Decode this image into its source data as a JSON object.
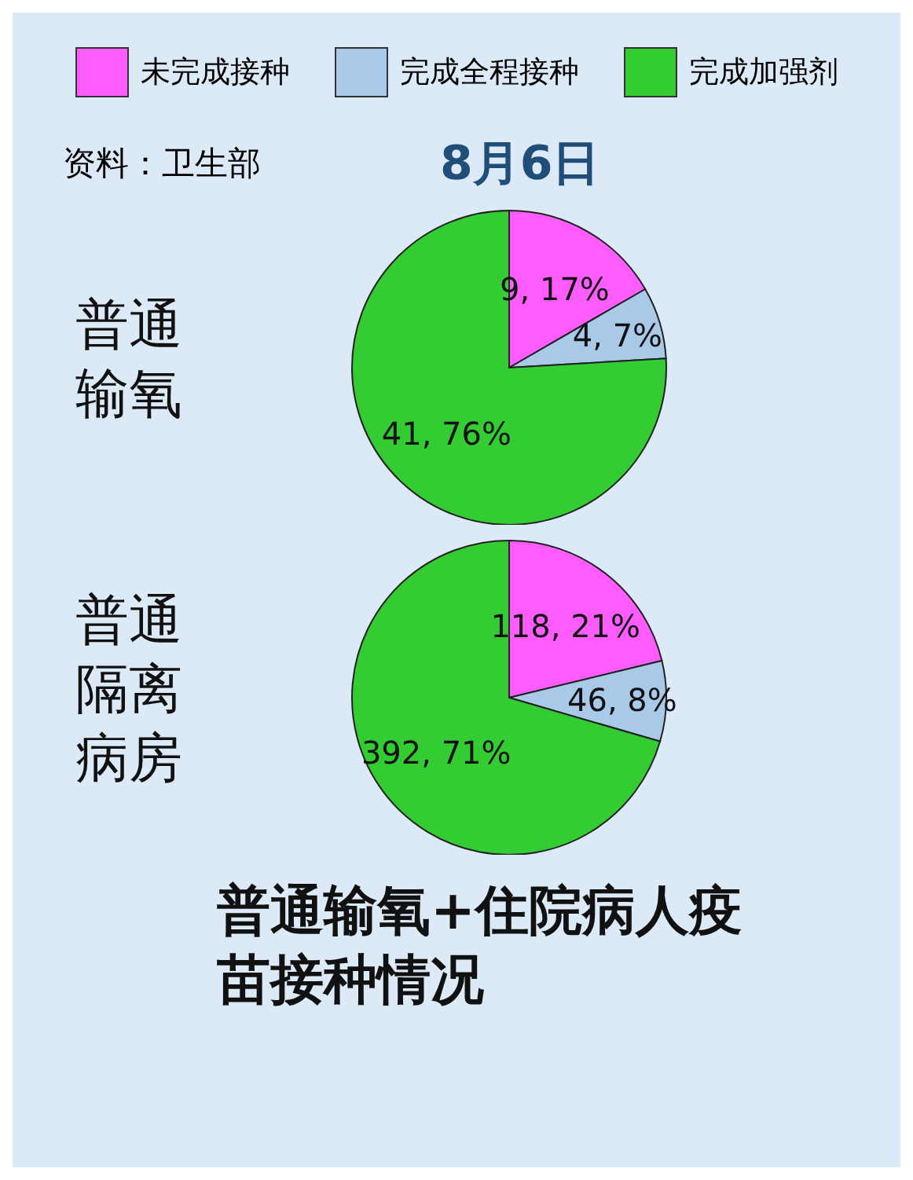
{
  "chart_data": [
    {
      "type": "pie",
      "title": "普通输氧",
      "annotations": [
        "资料：卫生部",
        "8月6日"
      ],
      "legend": "top",
      "categories": [
        "未完成接种",
        "完成全程接种",
        "完成加强剂"
      ],
      "values": [
        9,
        4,
        41
      ],
      "colors": [
        "#ff5cff",
        "#a9c9e8",
        "#33cc33"
      ],
      "value_labels": [
        "9, 17%",
        "4, 7%",
        "41, 76%"
      ]
    },
    {
      "type": "pie",
      "title": "普通隔离病房",
      "annotations": [
        "普通输氧+住院病人疫苗接种情况"
      ],
      "categories": [
        null,
        null,
        null
      ],
      "values": [
        118,
        46,
        392
      ],
      "colors": [
        "#ff5cff",
        "#a9c9e8",
        "#33cc33"
      ],
      "value_labels": [
        "118, 21%",
        "46, 8%",
        "392, 71%"
      ]
    }
  ]
}
